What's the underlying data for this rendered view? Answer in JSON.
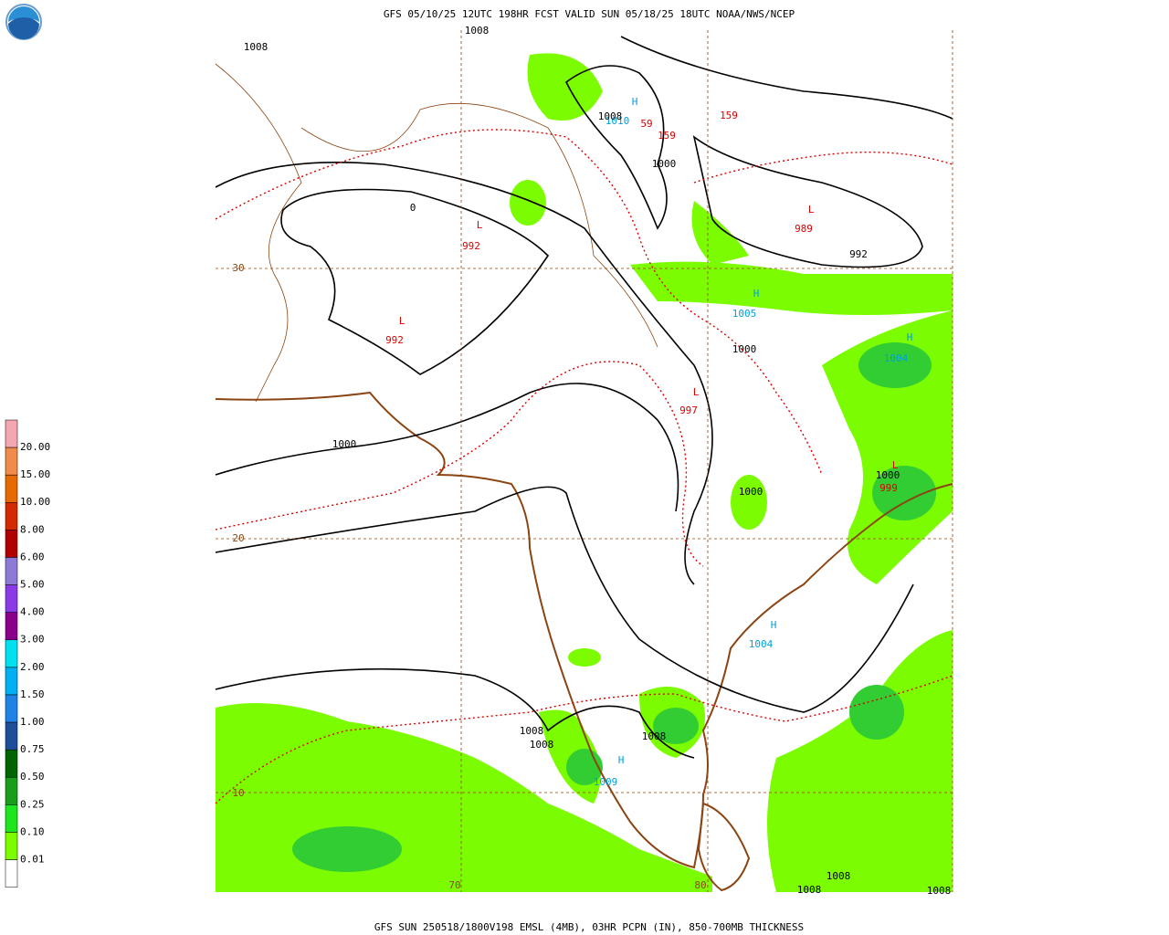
{
  "header": {
    "title": "GFS 05/10/25 12UTC 198HR FCST VALID SUN 05/18/25 18UTC NOAA/NWS/NCEP"
  },
  "footer": {
    "caption": "GFS SUN 250518/1800V198 EMSL (4MB), 03HR PCPN (IN), 850-700MB THICKNESS"
  },
  "legend": {
    "labels": [
      "20.00",
      "15.00",
      "10.00",
      "8.00",
      "6.00",
      "5.00",
      "4.00",
      "3.00",
      "2.00",
      "1.50",
      "1.00",
      "0.75",
      "0.50",
      "0.25",
      "0.10",
      "0.01"
    ]
  },
  "map": {
    "labels": [
      "1008",
      "1008",
      "H",
      "1010",
      "1008",
      "59",
      "159",
      "159",
      "1000",
      "L",
      "989",
      "992",
      "L",
      "992",
      "0",
      "L",
      "992",
      "30",
      "H",
      "1005",
      "1000",
      "H",
      "1004",
      "L",
      "997",
      "1000",
      "1000",
      "L",
      "999",
      "1000",
      "20",
      "H",
      "1004",
      "1008",
      "1008",
      "1008",
      "H",
      "1009",
      "10",
      "70",
      "80",
      "1008",
      "1008",
      "1008"
    ]
  }
}
